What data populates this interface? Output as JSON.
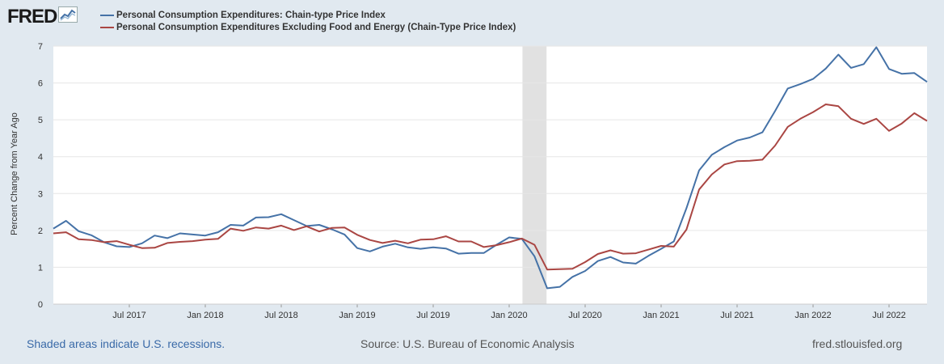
{
  "header": {
    "logo_text": "FRED",
    "logo_icon": "chart-line-icon"
  },
  "chart_data": {
    "type": "line",
    "title": "",
    "xlabel": "",
    "ylabel": "Percent Change from Year Ago",
    "ylim": [
      0,
      7
    ],
    "yticks": [
      0,
      1,
      2,
      3,
      4,
      5,
      6,
      7
    ],
    "grid": true,
    "x_start": "2017-01",
    "x_end": "2022-09",
    "xtick_labels": [
      {
        "label": "Jul 2017",
        "index": 6
      },
      {
        "label": "Jan 2018",
        "index": 12
      },
      {
        "label": "Jul 2018",
        "index": 18
      },
      {
        "label": "Jan 2019",
        "index": 24
      },
      {
        "label": "Jul 2019",
        "index": 30
      },
      {
        "label": "Jan 2020",
        "index": 36
      },
      {
        "label": "Jul 2020",
        "index": 42
      },
      {
        "label": "Jan 2021",
        "index": 48
      },
      {
        "label": "Jul 2021",
        "index": 54
      },
      {
        "label": "Jan 2022",
        "index": 60
      },
      {
        "label": "Jul 2022",
        "index": 66
      }
    ],
    "recession": {
      "start_index": 37,
      "end_index": 39
    },
    "series": [
      {
        "name": "Personal Consumption Expenditures: Chain-type Price Index",
        "color": "#4572a7",
        "values": [
          2.05,
          2.26,
          1.98,
          1.87,
          1.68,
          1.57,
          1.55,
          1.65,
          1.86,
          1.79,
          1.92,
          1.89,
          1.86,
          1.95,
          2.15,
          2.13,
          2.35,
          2.36,
          2.44,
          2.28,
          2.12,
          2.15,
          2.03,
          1.89,
          1.52,
          1.43,
          1.56,
          1.64,
          1.54,
          1.5,
          1.54,
          1.51,
          1.37,
          1.39,
          1.39,
          1.61,
          1.81,
          1.77,
          1.3,
          0.43,
          0.47,
          0.74,
          0.9,
          1.17,
          1.28,
          1.13,
          1.1,
          1.31,
          1.5,
          1.7,
          2.6,
          3.63,
          4.05,
          4.26,
          4.44,
          4.52,
          4.66,
          5.24,
          5.85,
          5.97,
          6.11,
          6.39,
          6.77,
          6.41,
          6.51,
          6.97,
          6.38,
          6.25,
          6.27,
          6.03
        ]
      },
      {
        "name": "Personal Consumption Expenditures Excluding Food and Energy (Chain-Type Price Index)",
        "color": "#aa4643",
        "values": [
          1.92,
          1.95,
          1.76,
          1.74,
          1.68,
          1.71,
          1.61,
          1.52,
          1.53,
          1.66,
          1.69,
          1.71,
          1.75,
          1.77,
          2.05,
          1.99,
          2.08,
          2.05,
          2.13,
          2.01,
          2.11,
          1.97,
          2.07,
          2.08,
          1.88,
          1.74,
          1.66,
          1.72,
          1.65,
          1.75,
          1.76,
          1.84,
          1.7,
          1.7,
          1.55,
          1.6,
          1.68,
          1.78,
          1.61,
          0.94,
          0.95,
          0.96,
          1.14,
          1.36,
          1.46,
          1.37,
          1.38,
          1.48,
          1.58,
          1.56,
          2.02,
          3.11,
          3.52,
          3.79,
          3.88,
          3.89,
          3.92,
          4.3,
          4.81,
          5.03,
          5.21,
          5.42,
          5.37,
          5.03,
          4.89,
          5.03,
          4.7,
          4.9,
          5.18,
          4.97
        ]
      }
    ]
  },
  "footer": {
    "recessions_note": "Shaded areas indicate U.S. recessions.",
    "source": "Source: U.S. Bureau of Economic Analysis",
    "site": "fred.stlouisfed.org"
  }
}
